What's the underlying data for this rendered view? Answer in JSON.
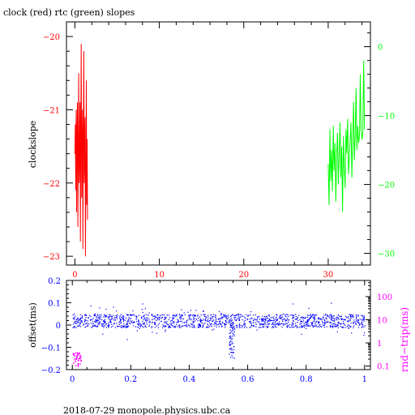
{
  "page_title": "clock (red) rtc (green) slopes",
  "footer": "2018-07-29  monopole.physics.ubc.ca",
  "colors": {
    "red": "#ff0000",
    "green": "#00ff00",
    "blue": "#0000ff",
    "magenta": "#ff00ff",
    "axis": "#000000"
  },
  "chart_data": [
    {
      "type": "line",
      "title": "clock (red) rtc (green) slopes",
      "xlim": [
        -1,
        35
      ],
      "x_ticks": [
        "0",
        "10",
        "20",
        "30"
      ],
      "y_left": {
        "label": "clockslope",
        "lim": [
          -23.12,
          -19.8
        ],
        "ticks": [
          "-20",
          "-21",
          "-22",
          "-23"
        ],
        "color": "#ff0000"
      },
      "y_right": {
        "label": "",
        "lim": [
          -31.7,
          3.6
        ],
        "ticks": [
          "0",
          "-10",
          "-20",
          "-30"
        ],
        "color": "#00ff00"
      },
      "series": [
        {
          "color": "#ff0000",
          "axis": "left",
          "x": [
            0.0,
            0.05,
            0.1,
            0.15,
            0.2,
            0.25,
            0.3,
            0.35,
            0.4,
            0.45,
            0.5,
            0.55,
            0.6,
            0.65,
            0.7,
            0.75,
            0.8,
            0.85,
            0.9,
            0.95,
            1.0,
            1.05,
            1.1,
            1.15,
            1.2,
            1.25,
            1.3,
            1.35,
            1.4,
            1.45,
            1.5
          ],
          "y": [
            -21.6,
            -21.2,
            -22.1,
            -21.0,
            -22.4,
            -21.3,
            -20.9,
            -22.6,
            -21.5,
            -20.5,
            -22.0,
            -21.7,
            -20.9,
            -22.8,
            -21.3,
            -20.1,
            -22.2,
            -21.6,
            -21.0,
            -22.9,
            -21.4,
            -20.2,
            -22.0,
            -21.5,
            -21.1,
            -23.0,
            -21.8,
            -20.6,
            -22.3,
            -21.4,
            -22.5
          ]
        },
        {
          "color": "#00ff00",
          "axis": "right",
          "x": [
            30.0,
            30.1,
            30.2,
            30.3,
            30.4,
            30.5,
            30.6,
            30.7,
            30.8,
            30.9,
            31.0,
            31.1,
            31.2,
            31.3,
            31.4,
            31.5,
            31.6,
            31.7,
            31.8,
            31.9,
            32.0,
            32.1,
            32.2,
            32.3,
            32.4,
            32.5,
            32.6,
            32.7,
            32.8,
            32.9,
            33.0,
            33.1,
            33.2,
            33.3,
            33.4,
            33.5,
            33.6,
            33.7,
            33.8,
            33.9,
            34.0,
            34.1,
            34.2,
            34.3
          ],
          "y": [
            -17.0,
            -23.0,
            -12.0,
            -19.5,
            -15.0,
            -21.0,
            -11.5,
            -18.0,
            -14.0,
            -22.5,
            -16.0,
            -12.5,
            -20.0,
            -15.5,
            -11.0,
            -19.0,
            -14.5,
            -24.0,
            -13.0,
            -17.5,
            -20.5,
            -12.0,
            -15.5,
            -10.5,
            -18.5,
            -16.0,
            -13.5,
            -11.0,
            -19.0,
            -14.0,
            -8.0,
            -16.5,
            -12.5,
            -6.0,
            -15.0,
            -11.5,
            -14.0,
            -13.0,
            -4.0,
            -12.0,
            -13.5,
            -12.5,
            -2.0,
            -12.0
          ]
        }
      ]
    },
    {
      "type": "scatter",
      "title": "",
      "xlim": [
        -0.02,
        1.02
      ],
      "x_ticks": [
        "0",
        "0.2",
        "0.4",
        "0.6",
        "0.8",
        "1"
      ],
      "y_left": {
        "label": "offset(ms)",
        "lim": [
          -0.2,
          0.2
        ],
        "ticks": [
          "0.2",
          "0.1",
          "0",
          "-0.1",
          "-0.2"
        ],
        "color": "#0000ff"
      },
      "y_right": {
        "label": "rnd−trip(ms)",
        "scale": "log",
        "lim": [
          0.07,
          500
        ],
        "ticks": [
          "100",
          "10",
          "1",
          "0.1"
        ],
        "color": "#ff00ff"
      },
      "series": [
        {
          "color": "#0000ff",
          "axis": "left",
          "x_range": [
            0,
            1
          ],
          "center": 0.02,
          "spread": 0.03,
          "dip_x": 0.545,
          "dip_y": -0.15
        },
        {
          "color": "#ff00ff",
          "axis": "right",
          "x_range": [
            0,
            0.03
          ],
          "y_range": [
            0.1,
            0.4
          ]
        }
      ]
    }
  ]
}
